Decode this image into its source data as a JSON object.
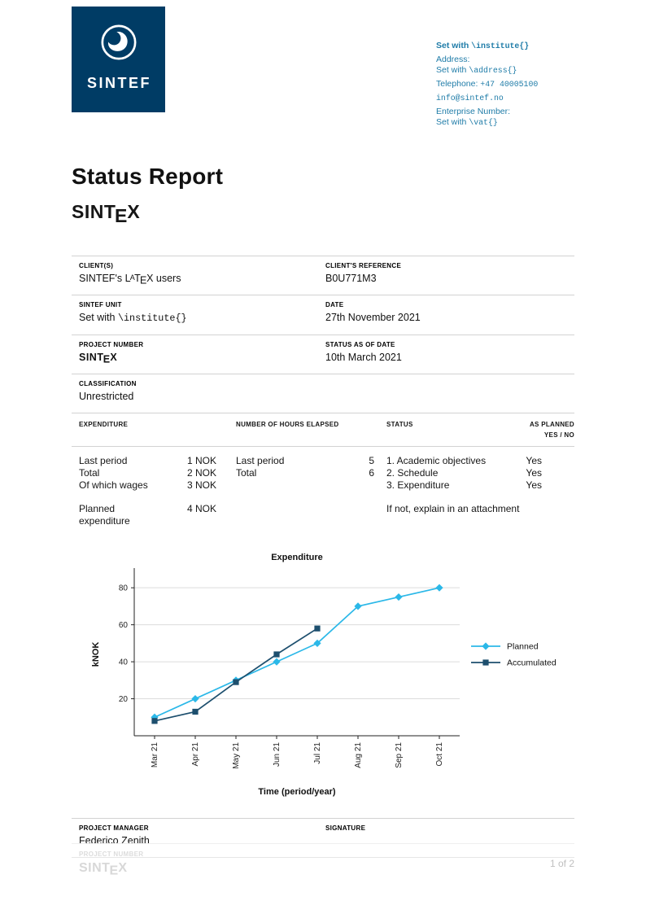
{
  "colors": {
    "brand_navy": "#003C65",
    "contact_blue": "#1F7CA8",
    "planned_series": "#2BB8E8",
    "accumulated_series": "#1D4F6E",
    "gridline": "#DCDCDC"
  },
  "logo": {
    "text": "SINTEF"
  },
  "contact": {
    "institute_prefix": "Set with ",
    "institute_cmd": "\\institute{}",
    "address_label": "Address:",
    "address_prefix": "Set with ",
    "address_cmd": "\\address{}",
    "telephone_prefix": "Telephone: ",
    "telephone_number": "+47 40005100",
    "email": "info@sintef.no",
    "enterprise_label": "Enterprise Number:",
    "vat_prefix": "Set with ",
    "vat_cmd": "\\vat{}"
  },
  "title": "Status Report",
  "sintex": {
    "pre": "SINT",
    "e": "E",
    "x": "X"
  },
  "info": {
    "client_label": "CLIENT(S)",
    "client_prefix": "SINTEF's ",
    "latex": {
      "l": "L",
      "a": "A",
      "t": "T",
      "e": "E",
      "x": "X"
    },
    "client_suffix": " users",
    "client_ref_label": "CLIENT'S REFERENCE",
    "client_ref": "B0U771M3",
    "unit_label": "SINTEF UNIT",
    "unit_prefix": "Set with ",
    "unit_cmd": "\\institute{}",
    "date_label": "DATE",
    "date": "27th November 2021",
    "project_label": "PROJECT NUMBER",
    "status_date_label": "STATUS AS OF DATE",
    "status_date": "10th March 2021",
    "classification_label": "CLASSIFICATION",
    "classification": "Unrestricted"
  },
  "table": {
    "header_expenditure": "EXPENDITURE",
    "header_hours": "NUMBER OF HOURS ELAPSED",
    "header_status": "STATUS",
    "header_planned_line1": "AS PLANNED",
    "header_planned_line2": "YES / NO",
    "rows": {
      "r1": {
        "exp_label": "Last period",
        "exp_val": "1 NOK",
        "hrs_label": "Last period",
        "hrs_val": "5",
        "status": "1. Academic objectives",
        "yes": "Yes"
      },
      "r2": {
        "exp_label": "Total",
        "exp_val": "2 NOK",
        "hrs_label": "Total",
        "hrs_val": "6",
        "status": "2. Schedule",
        "yes": "Yes"
      },
      "r3": {
        "exp_label": "Of which wages",
        "exp_val": "3 NOK",
        "status": "3. Expenditure",
        "yes": "Yes"
      },
      "r4": {
        "exp_label": "Planned expenditure",
        "exp_val": "4 NOK",
        "note": "If not, explain in an attachment"
      }
    }
  },
  "chart_data": {
    "type": "line",
    "title": "Expenditure",
    "xlabel": "Time (period/year)",
    "ylabel": "kNOK",
    "categories": [
      "Mar 21",
      "Apr 21",
      "May 21",
      "Jun 21",
      "Jul 21",
      "Aug 21",
      "Sep 21",
      "Oct 21"
    ],
    "series": [
      {
        "name": "Planned",
        "color": "#2BB8E8",
        "marker": "diamond",
        "values": [
          10,
          20,
          30,
          40,
          50,
          70,
          75,
          80
        ]
      },
      {
        "name": "Accumulated",
        "color": "#1D4F6E",
        "marker": "square",
        "values": [
          8,
          13,
          29,
          44,
          58
        ]
      }
    ],
    "yticks": [
      20,
      40,
      60,
      80
    ],
    "ylim": [
      0,
      88
    ],
    "grid": "horizontal",
    "legend_position": "right"
  },
  "manager": {
    "label": "PROJECT MANAGER",
    "name": "Federico Zenith",
    "signature_label": "SIGNATURE"
  },
  "footer": {
    "project_label": "PROJECT NUMBER",
    "page_indicator": "1 of 2"
  }
}
